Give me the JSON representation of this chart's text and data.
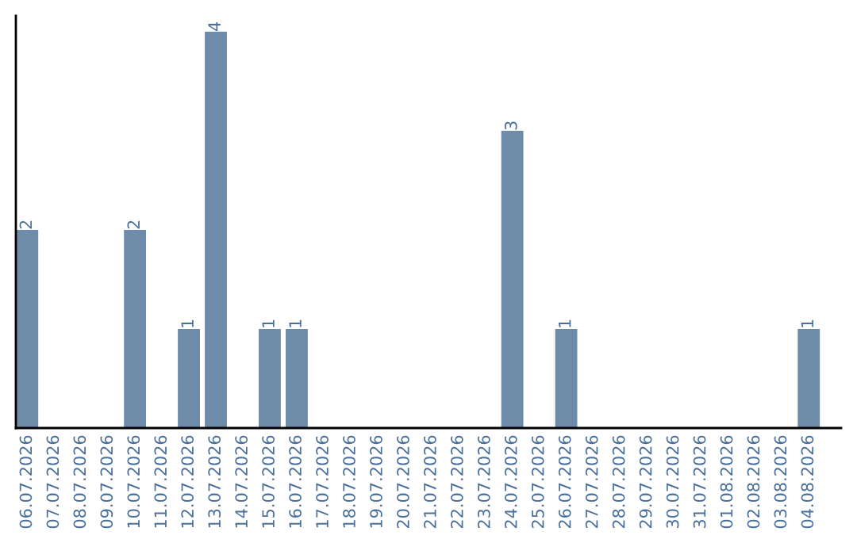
{
  "chart_data": {
    "type": "bar",
    "categories": [
      "06.07.2026",
      "07.07.2026",
      "08.07.2026",
      "09.07.2026",
      "10.07.2026",
      "11.07.2026",
      "12.07.2026",
      "13.07.2026",
      "14.07.2026",
      "15.07.2026",
      "16.07.2026",
      "17.07.2026",
      "18.07.2026",
      "19.07.2026",
      "20.07.2026",
      "21.07.2026",
      "22.07.2026",
      "23.07.2026",
      "24.07.2026",
      "25.07.2026",
      "26.07.2026",
      "27.07.2026",
      "28.07.2026",
      "29.07.2026",
      "30.07.2026",
      "31.07.2026",
      "01.08.2026",
      "02.08.2026",
      "03.08.2026",
      "04.08.2026"
    ],
    "values": [
      2,
      null,
      null,
      null,
      2,
      null,
      1,
      4,
      null,
      1,
      1,
      null,
      null,
      null,
      null,
      null,
      null,
      null,
      3,
      null,
      1,
      null,
      null,
      null,
      null,
      null,
      null,
      null,
      null,
      1
    ],
    "value_labels": [
      "2",
      null,
      null,
      null,
      "2",
      null,
      "1",
      "4",
      null,
      "1",
      "1",
      null,
      null,
      null,
      null,
      null,
      null,
      null,
      "3",
      null,
      "1",
      null,
      null,
      null,
      null,
      null,
      null,
      null,
      null,
      "1"
    ],
    "color": "#6e8caa",
    "ylim": [
      0,
      4.16
    ],
    "tick_labels": "x",
    "grid": false,
    "legend": false
  }
}
